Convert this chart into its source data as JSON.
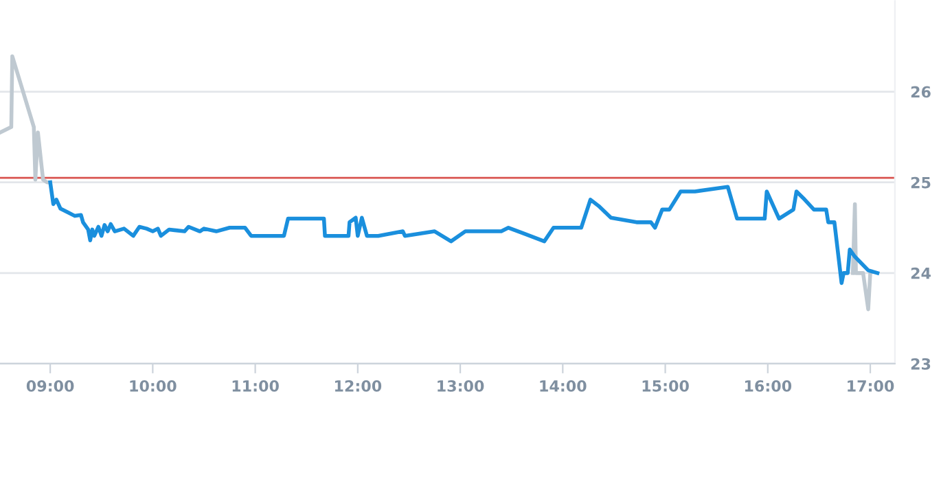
{
  "chart_data": {
    "type": "line",
    "series": [
      {
        "color": "#bfc9d1",
        "x": [
          8.51,
          8.62,
          8.63,
          8.84,
          8.855,
          8.88,
          8.93,
          8.97,
          9.0
        ],
        "values": [
          25.55,
          25.61,
          26.39,
          25.61,
          25.03,
          25.55,
          25.03,
          25.0,
          25.0
        ]
      },
      {
        "color": "#bfc9d1",
        "x": [
          16.83,
          16.85,
          16.86,
          16.93,
          16.98,
          17.0
        ],
        "values": [
          24.0,
          24.76,
          24.0,
          24.0,
          23.6,
          24.0
        ]
      },
      {
        "color": "#1a8fdd",
        "x": [
          9.0,
          9.03,
          9.06,
          9.1,
          9.17,
          9.24,
          9.3,
          9.32,
          9.37,
          9.39,
          9.41,
          9.43,
          9.47,
          9.5,
          9.53,
          9.56,
          9.59,
          9.63,
          9.72,
          9.81,
          9.87,
          9.94,
          10.0,
          10.05,
          10.08,
          10.16,
          10.31,
          10.35,
          10.46,
          10.5,
          10.62,
          10.75,
          10.9,
          10.96,
          11.28,
          11.32,
          11.67,
          11.68,
          11.91,
          11.92,
          11.98,
          12.0,
          12.04,
          12.09,
          12.2,
          12.44,
          12.46,
          12.75,
          12.91,
          13.05,
          13.4,
          13.47,
          13.82,
          13.91,
          14.18,
          14.27,
          14.35,
          14.47,
          14.72,
          14.86,
          14.9,
          14.97,
          15.04,
          15.15,
          15.29,
          15.61,
          15.7,
          15.97,
          15.99,
          16.11,
          16.25,
          16.28,
          16.36,
          16.45,
          16.57,
          16.59,
          16.65,
          16.72,
          16.74,
          16.78,
          16.8,
          16.85,
          16.98,
          17.07
        ],
        "values": [
          25.0,
          24.76,
          24.81,
          24.71,
          24.67,
          24.63,
          24.64,
          24.56,
          24.48,
          24.36,
          24.48,
          24.41,
          24.51,
          24.41,
          24.53,
          24.46,
          24.54,
          24.46,
          24.49,
          24.41,
          24.51,
          24.49,
          24.46,
          24.49,
          24.41,
          24.48,
          24.46,
          24.51,
          24.46,
          24.49,
          24.46,
          24.5,
          24.5,
          24.41,
          24.41,
          24.6,
          24.6,
          24.41,
          24.41,
          24.56,
          24.61,
          24.41,
          24.61,
          24.41,
          24.41,
          24.46,
          24.41,
          24.46,
          24.35,
          24.46,
          24.46,
          24.5,
          24.35,
          24.5,
          24.5,
          24.81,
          24.74,
          24.61,
          24.56,
          24.56,
          24.5,
          24.7,
          24.7,
          24.9,
          24.9,
          24.95,
          24.6,
          24.6,
          24.9,
          24.6,
          24.7,
          24.9,
          24.81,
          24.7,
          24.7,
          24.56,
          24.56,
          23.89,
          24.0,
          24.0,
          24.26,
          24.18,
          24.03,
          24.0
        ]
      }
    ],
    "xlim": [
      8.51,
      17.24
    ],
    "xticks": [
      {
        "value": 9,
        "label": "09:00"
      },
      {
        "value": 10,
        "label": "10:00"
      },
      {
        "value": 11,
        "label": "11:00"
      },
      {
        "value": 12,
        "label": "12:00"
      },
      {
        "value": 13,
        "label": "13:00"
      },
      {
        "value": 14,
        "label": "14:00"
      },
      {
        "value": 15,
        "label": "15:00"
      },
      {
        "value": 16,
        "label": "16:00"
      },
      {
        "value": 17,
        "label": "17:00"
      }
    ],
    "ylim": [
      23,
      27
    ],
    "yticks": [
      23,
      24,
      25,
      26
    ],
    "ref_lines": [
      {
        "axis": "y",
        "value": 25.05,
        "color": "#d9534f"
      }
    ],
    "grid": "y",
    "marker": "none",
    "line_style": "solid"
  }
}
